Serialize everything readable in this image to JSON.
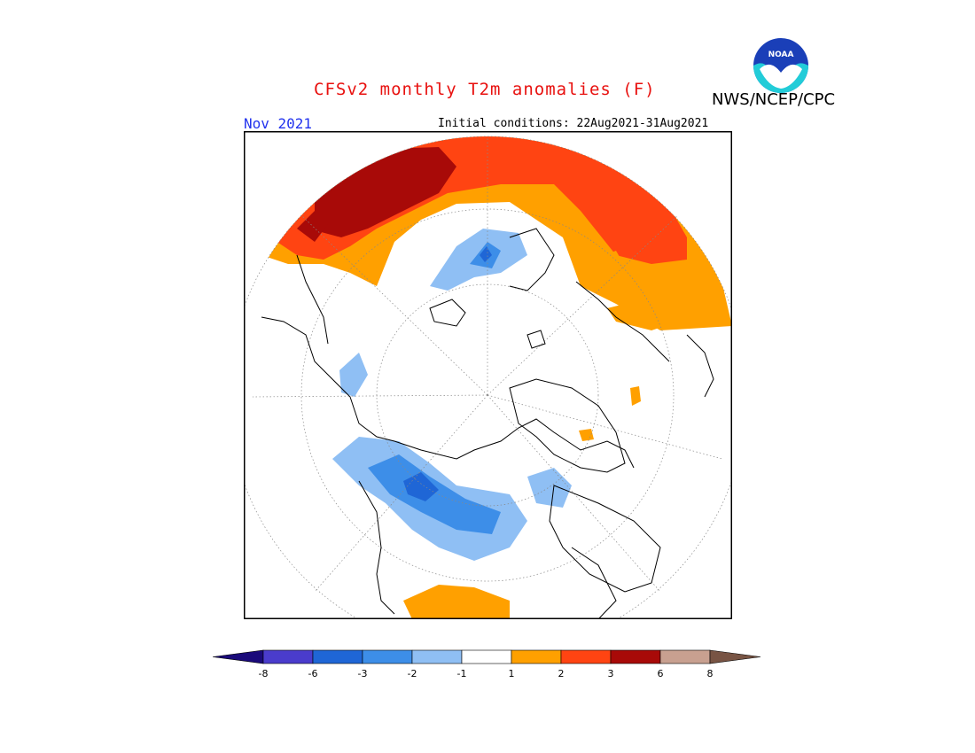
{
  "header": {
    "title": "CFSv2 monthly T2m anomalies (F)",
    "agency": "NWS/NCEP/CPC",
    "month": "Nov 2021",
    "initial_conditions": "Initial conditions: 22Aug2021-31Aug2021",
    "logo_text": "NOAA"
  },
  "map": {
    "projection": "north polar stereographic",
    "variable": "2m temperature anomaly",
    "units": "F"
  },
  "legend": {
    "colors": [
      "#1a0a7a",
      "#4a3ccc",
      "#1f66d6",
      "#3d8ee8",
      "#8fbff4",
      "#ffffff",
      "#ffa000",
      "#ff4412",
      "#a80a08",
      "#c8a090",
      "#785444"
    ],
    "ticks": [
      "-8",
      "-6",
      "-3",
      "-2",
      "-1",
      "1",
      "2",
      "3",
      "6",
      "8"
    ]
  },
  "colors": {
    "title": "#e8110f",
    "month": "#2233ee",
    "frame": "#000000"
  }
}
